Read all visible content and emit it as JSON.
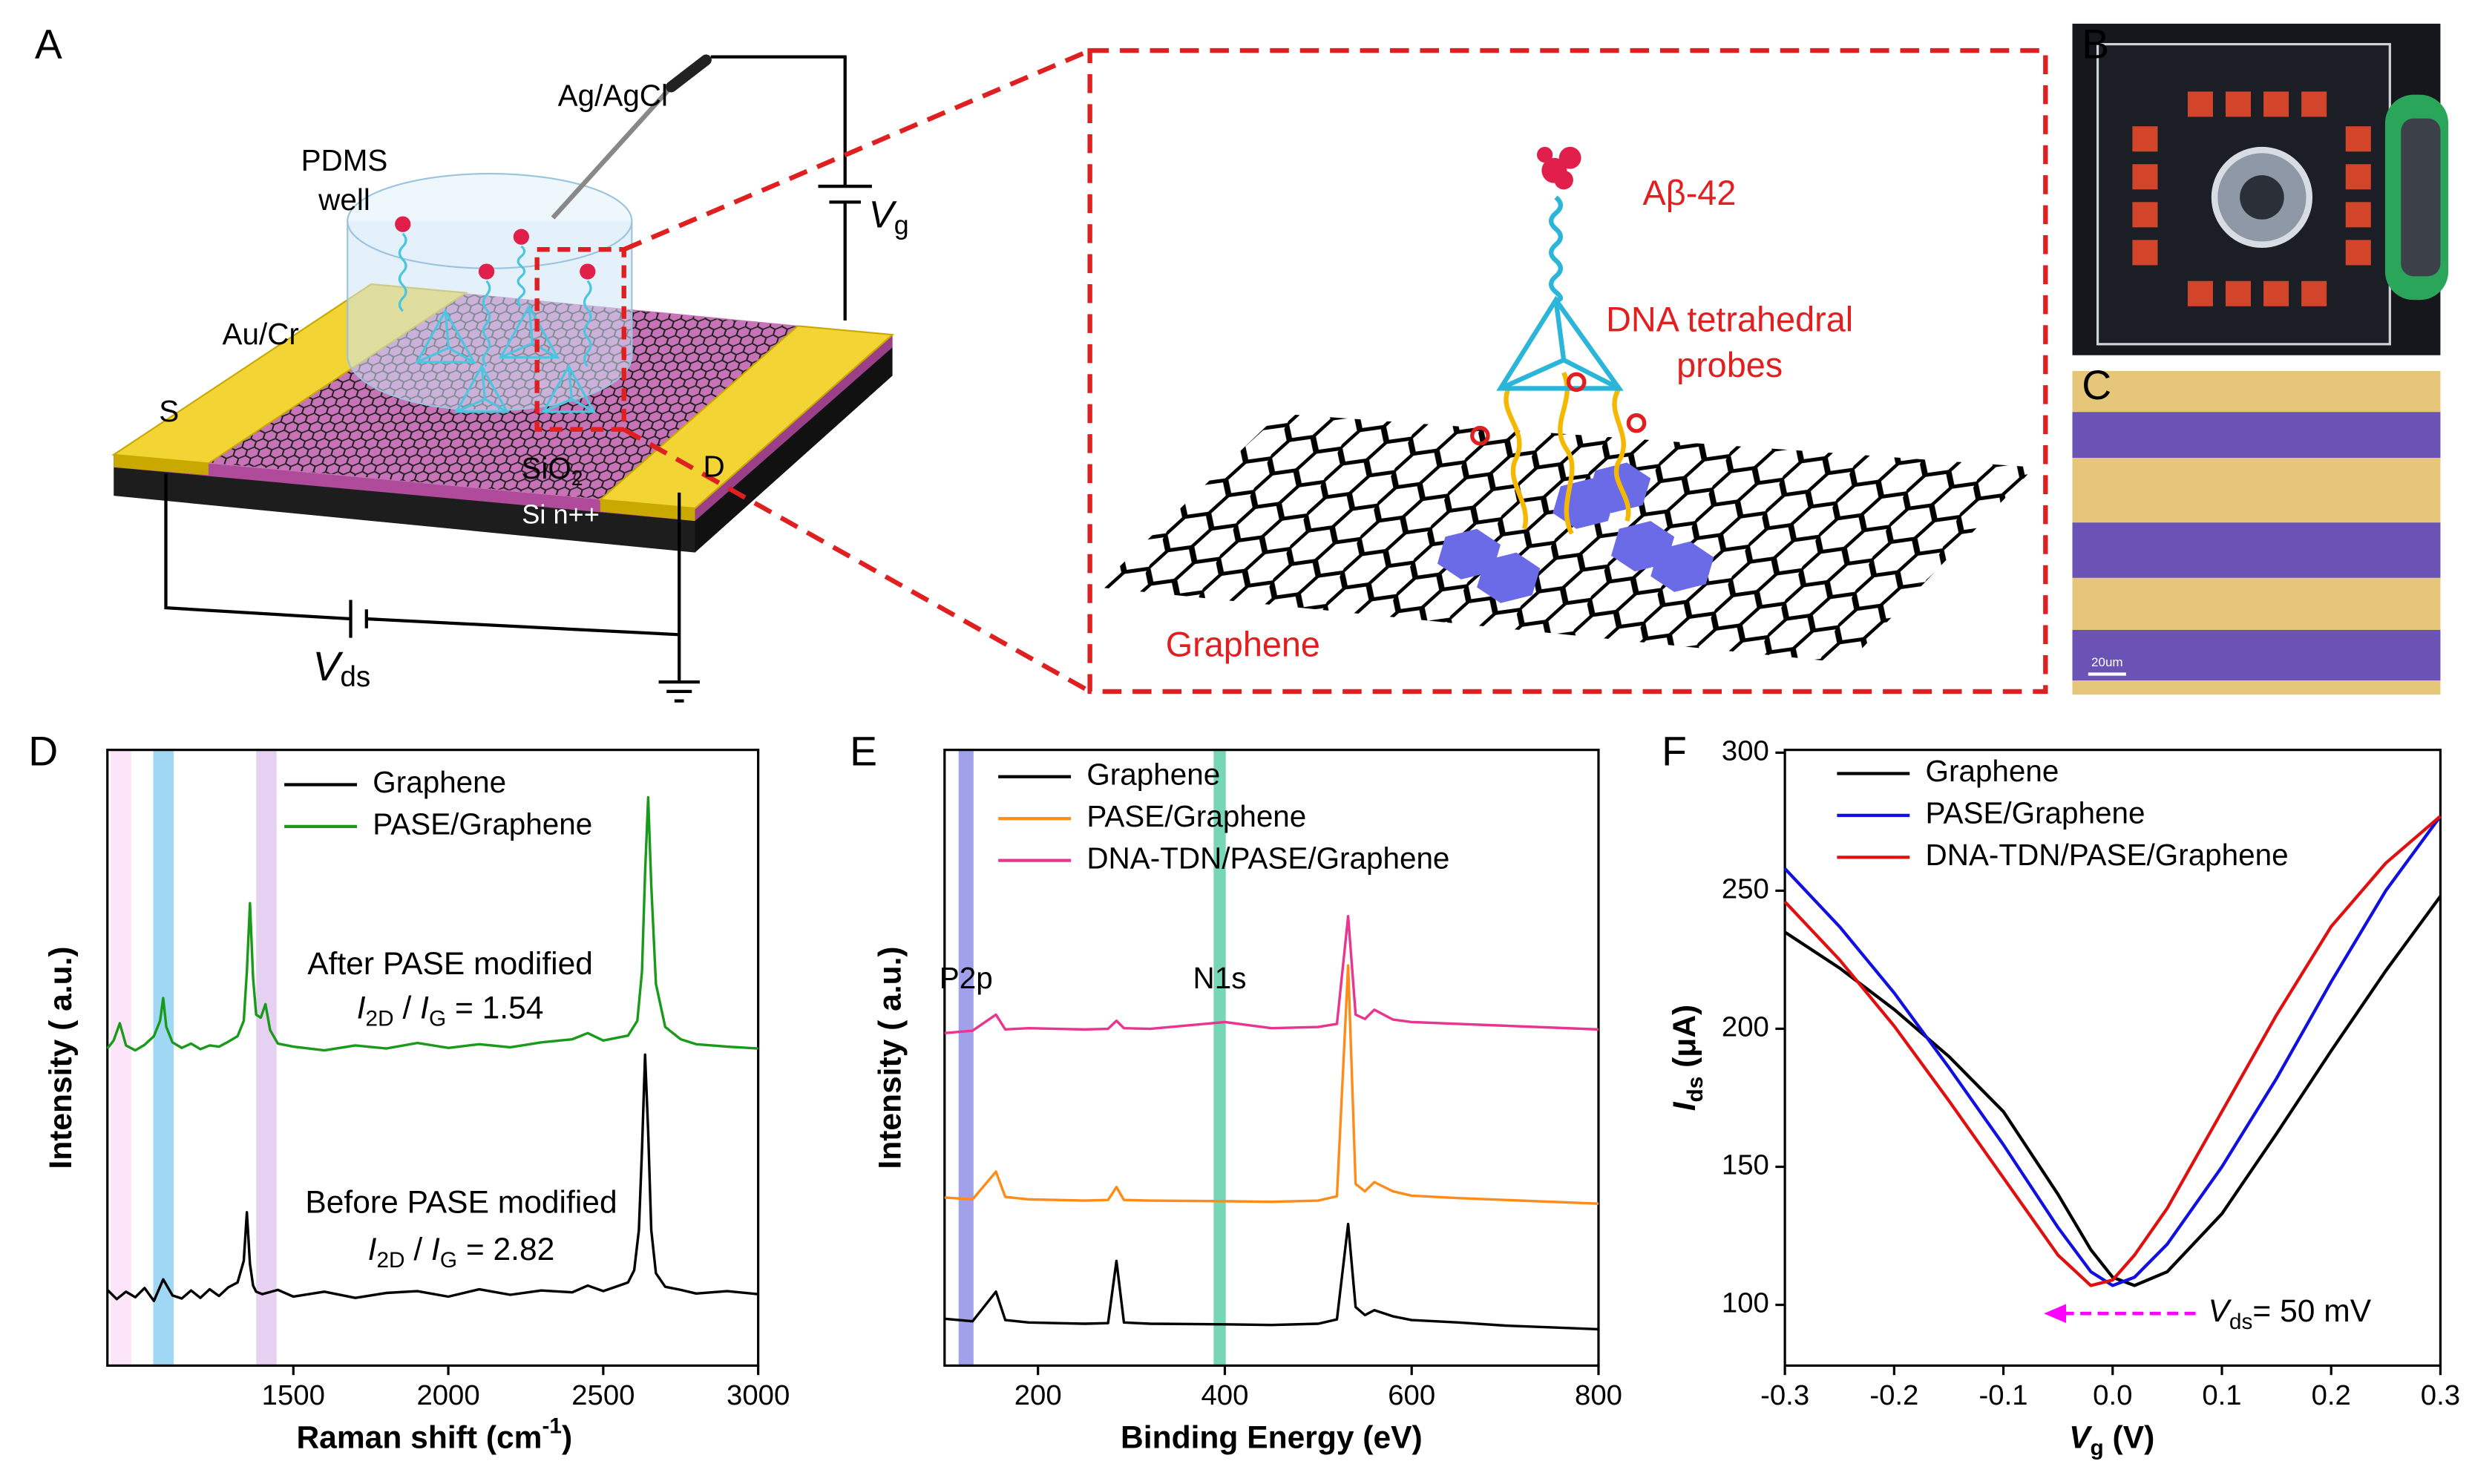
{
  "panel_labels": [
    "A",
    "B",
    "C",
    "D",
    "E",
    "F"
  ],
  "diagram": {
    "electrode": "Ag/AgCl",
    "well": [
      "PDMS",
      "well"
    ],
    "gate": [
      "V",
      "g"
    ],
    "metal": "Au/Cr",
    "source": "S",
    "drain": "D",
    "oxide": [
      "SiO",
      "2"
    ],
    "substrate": "Si n++",
    "bias": [
      "V",
      "ds"
    ]
  },
  "inset": {
    "target": "Aβ-42",
    "probe": [
      "DNA tetrahedral",
      "probes"
    ],
    "sheet": "Graphene"
  },
  "micrograph": {
    "scale_bar": "20um"
  },
  "chart_data": [
    {
      "type": "line",
      "xlabel": [
        "Raman shift (cm",
        "-1",
        ")"
      ],
      "ylabel": "Intensity ( a.u.)",
      "xlim": [
        900,
        3000
      ],
      "ylim": [
        0,
        100
      ],
      "xticks": [
        1500,
        2000,
        2500,
        3000
      ],
      "highlights": [
        {
          "range": [
            910,
            977
          ],
          "color": "#fbe0f7"
        },
        {
          "range": [
            1048,
            1114
          ],
          "color": "#8fd0f3"
        },
        {
          "range": [
            1380,
            1446
          ],
          "color": "#e2c9f0"
        }
      ],
      "annotations": [
        {
          "parts": [
            "After PASE modified"
          ]
        },
        {
          "parts": [
            "I",
            "2D",
            " / ",
            "I",
            "G",
            " = 1.54"
          ]
        },
        {
          "parts": [
            "Before PASE modified"
          ]
        },
        {
          "parts": [
            "I",
            "2D",
            " / ",
            "I",
            "G",
            " = 2.82"
          ]
        }
      ],
      "series": [
        {
          "name": "Graphene",
          "color": "#000000",
          "x": [
            900,
            930,
            960,
            990,
            1020,
            1050,
            1080,
            1110,
            1140,
            1170,
            1200,
            1230,
            1260,
            1290,
            1320,
            1340,
            1350,
            1360,
            1370,
            1380,
            1400,
            1450,
            1500,
            1600,
            1700,
            1800,
            1900,
            2000,
            2100,
            2200,
            2300,
            2400,
            2450,
            2500,
            2540,
            2580,
            2600,
            2615,
            2625,
            2635,
            2645,
            2655,
            2670,
            2700,
            2750,
            2800,
            2900,
            3000
          ],
          "values": [
            12.3,
            10.8,
            12.0,
            11.1,
            12.6,
            10.5,
            14.0,
            11.4,
            10.9,
            12.2,
            11.0,
            12.4,
            11.3,
            12.7,
            13.5,
            17.0,
            24.9,
            16.5,
            13.0,
            12.0,
            11.6,
            12.3,
            11.2,
            12.0,
            11.0,
            11.8,
            12.1,
            11.2,
            12.4,
            11.5,
            12.2,
            11.9,
            13.0,
            12.1,
            12.8,
            13.5,
            15.5,
            22.0,
            35.0,
            50.5,
            38.0,
            22.0,
            15.0,
            12.8,
            12.3,
            11.7,
            12.1,
            11.6
          ]
        },
        {
          "name": "PASE/Graphene",
          "color": "#1a9a1a",
          "x": [
            900,
            920,
            940,
            960,
            990,
            1020,
            1050,
            1070,
            1080,
            1090,
            1110,
            1140,
            1170,
            1200,
            1230,
            1260,
            1290,
            1320,
            1340,
            1350,
            1360,
            1370,
            1380,
            1395,
            1410,
            1425,
            1450,
            1500,
            1600,
            1700,
            1800,
            1900,
            2000,
            2100,
            2200,
            2300,
            2400,
            2450,
            2500,
            2580,
            2610,
            2625,
            2635,
            2645,
            2655,
            2670,
            2700,
            2750,
            2800,
            2900,
            3000
          ],
          "values": [
            51.5,
            52.8,
            55.6,
            52.0,
            51.2,
            52.1,
            53.5,
            56.0,
            59.7,
            55.0,
            52.5,
            51.6,
            52.3,
            51.4,
            52.0,
            51.8,
            52.6,
            53.5,
            56.0,
            64.0,
            75.1,
            63.0,
            57.0,
            56.5,
            58.7,
            54.5,
            52.3,
            51.8,
            51.2,
            52.0,
            51.5,
            52.4,
            51.6,
            52.2,
            51.7,
            52.5,
            53.0,
            54.0,
            52.8,
            53.6,
            56.0,
            64.0,
            80.0,
            92.3,
            78.0,
            62.0,
            55.0,
            53.0,
            52.2,
            51.8,
            51.5
          ]
        }
      ]
    },
    {
      "type": "line",
      "xlabel": [
        "Binding Energy (eV)"
      ],
      "ylabel": "Intensity ( a.u.)",
      "xlim": [
        100,
        800
      ],
      "ylim": [
        0,
        100
      ],
      "xticks": [
        200,
        400,
        600,
        800
      ],
      "highlights": [
        {
          "label": "P2p",
          "range": [
            115,
            131
          ],
          "color": "#8f8fe8"
        },
        {
          "label": "N1s",
          "range": [
            388,
            401
          ],
          "color": "#5fcfa8"
        }
      ],
      "series": [
        {
          "name": "Graphene",
          "color": "#000000",
          "x": [
            100,
            130,
            155,
            165,
            190,
            220,
            250,
            275,
            284,
            292,
            320,
            400,
            450,
            500,
            520,
            532,
            540,
            550,
            560,
            580,
            600,
            650,
            700,
            750,
            800
          ],
          "values": [
            7.6,
            7.2,
            12.0,
            7.4,
            7.0,
            6.9,
            6.8,
            6.9,
            17.0,
            7.0,
            6.8,
            6.7,
            6.6,
            6.8,
            7.5,
            23.0,
            9.5,
            8.2,
            9.0,
            8.0,
            7.4,
            7.0,
            6.5,
            6.2,
            5.9
          ]
        },
        {
          "name": "PASE/Graphene",
          "color": "#ff8c1a",
          "x": [
            100,
            130,
            155,
            165,
            190,
            220,
            250,
            275,
            284,
            292,
            320,
            400,
            450,
            500,
            520,
            532,
            540,
            550,
            560,
            580,
            600,
            650,
            700,
            750,
            800
          ],
          "values": [
            27.3,
            27.0,
            31.5,
            27.4,
            27.0,
            26.9,
            26.8,
            26.9,
            29.0,
            26.9,
            26.8,
            26.7,
            26.6,
            26.8,
            27.5,
            65.0,
            29.5,
            28.3,
            29.8,
            28.3,
            27.6,
            27.2,
            26.9,
            26.6,
            26.3
          ]
        },
        {
          "name": "DNA-TDN/PASE/Graphene",
          "color": "#e8358f",
          "x": [
            100,
            130,
            155,
            165,
            190,
            220,
            250,
            275,
            284,
            292,
            320,
            400,
            450,
            500,
            520,
            532,
            540,
            550,
            560,
            580,
            600,
            650,
            700,
            750,
            800
          ],
          "values": [
            54.0,
            54.4,
            57.0,
            54.6,
            54.8,
            54.7,
            54.6,
            54.7,
            56.0,
            54.8,
            54.7,
            55.8,
            54.8,
            55.0,
            55.5,
            73.0,
            57.0,
            56.3,
            57.8,
            56.2,
            55.8,
            55.5,
            55.2,
            54.9,
            54.6
          ]
        }
      ]
    },
    {
      "type": "line",
      "xlabel": [
        "V",
        "g",
        " (V)"
      ],
      "ylabel": [
        "I",
        "ds",
        " (μA)"
      ],
      "xlim": [
        -0.3,
        0.3
      ],
      "ylim": [
        78,
        301
      ],
      "xticks": [
        -0.3,
        -0.2,
        -0.1,
        {
          "value": 0,
          "label": "0.0"
        },
        0.1,
        0.2,
        0.3
      ],
      "yticks": [
        100,
        150,
        200,
        250,
        300
      ],
      "annotations": [
        {
          "parts": [
            "V",
            "ds",
            "= 50 mV"
          ],
          "arrow_color": "#ff00ff"
        }
      ],
      "series": [
        {
          "name": "Graphene",
          "color": "#000000",
          "x": [
            -0.3,
            -0.25,
            -0.2,
            -0.15,
            -0.1,
            -0.05,
            -0.02,
            0,
            0.02,
            0.05,
            0.1,
            0.15,
            0.2,
            0.25,
            0.3
          ],
          "values": [
            235,
            222,
            207,
            190,
            170,
            140,
            120,
            110,
            107,
            112,
            133,
            162,
            192,
            221,
            248
          ]
        },
        {
          "name": "PASE/Graphene",
          "color": "#1010e0",
          "x": [
            -0.3,
            -0.25,
            -0.2,
            -0.15,
            -0.1,
            -0.05,
            -0.02,
            0,
            0.02,
            0.05,
            0.1,
            0.15,
            0.2,
            0.25,
            0.3
          ],
          "values": [
            258,
            237,
            213,
            186,
            158,
            128,
            112,
            107,
            110,
            122,
            150,
            182,
            217,
            250,
            277
          ]
        },
        {
          "name": "DNA-TDN/PASE/Graphene",
          "color": "#e01010",
          "x": [
            -0.3,
            -0.25,
            -0.2,
            -0.15,
            -0.1,
            -0.05,
            -0.02,
            0,
            0.02,
            0.05,
            0.1,
            0.15,
            0.2,
            0.25,
            0.3
          ],
          "values": [
            246,
            225,
            201,
            174,
            146,
            118,
            107,
            109,
            118,
            135,
            170,
            205,
            237,
            260,
            277
          ]
        }
      ]
    }
  ]
}
